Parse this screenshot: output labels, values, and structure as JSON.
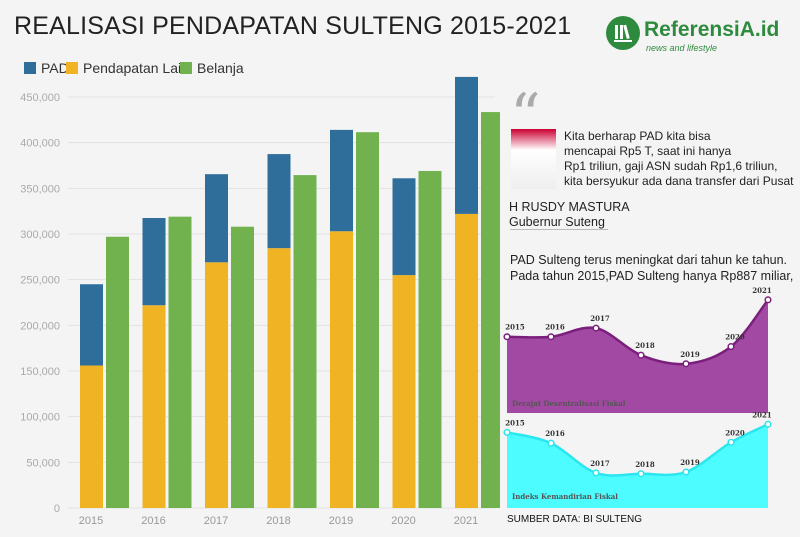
{
  "header": {
    "title": "REALISASI PENDAPATAN SULTENG 2015-2021"
  },
  "logo": {
    "name": "ReferensiA.id",
    "tagline": "news and lifestyle"
  },
  "quote": {
    "lines": [
      "Kita berharap PAD kita bisa",
      "mencapai Rp5 T, saat ini hanya",
      "Rp1 triliun, gaji ASN sudah Rp1,6 triliun,",
      "kita bersyukur ada dana transfer dari Pusat"
    ],
    "speaker": "H RUSDY MASTURA",
    "role": "Gubernur Suteng"
  },
  "description": [
    "PAD Sulteng terus meningkat dari tahun ke tahun.",
    "Pada tahun 2015,PAD Sulteng hanya Rp887 miliar,"
  ],
  "source": "SUMBER DATA: BI SULTENG",
  "chart_data": [
    {
      "type": "bar",
      "title": "REALISASI PENDAPATAN SULTENG 2015-2021",
      "categories": [
        "2015",
        "2016",
        "2017",
        "2018",
        "2019",
        "2020",
        "2021"
      ],
      "ylim": [
        0,
        450000
      ],
      "yticks": [
        0,
        50000,
        100000,
        150000,
        200000,
        250000,
        300000,
        350000,
        400000,
        450000
      ],
      "ytick_labels": [
        "0",
        "50,000",
        "100,000",
        "150,000",
        "200,000",
        "250,000",
        "300,000",
        "350,000",
        "400,000",
        "450,000"
      ],
      "legend": "top-left",
      "grid": true,
      "series": [
        {
          "name": "PAD",
          "color": "#2f6e9b",
          "stack": "pendapatan",
          "values": [
            89000,
            95500,
            96500,
            103000,
            111000,
            106000,
            150000
          ]
        },
        {
          "name": "Pendapatan Lain",
          "color": "#f0b323",
          "stack": "pendapatan",
          "values": [
            156000,
            222000,
            269000,
            284500,
            303000,
            255000,
            322000
          ]
        },
        {
          "name": "Belanja",
          "color": "#71b24f",
          "stack": "belanja",
          "values": [
            297000,
            319000,
            308000,
            364500,
            411500,
            369000,
            433500
          ]
        }
      ]
    },
    {
      "type": "area",
      "title": "Derajat Desentralisasi Fiskal",
      "color": "#a24aa3",
      "line": "#7a1f7c",
      "categories": [
        "2015",
        "2016",
        "2017",
        "2018",
        "2019",
        "2020",
        "2021"
      ],
      "values": [
        0.62,
        0.62,
        0.69,
        0.47,
        0.4,
        0.54,
        0.92
      ],
      "ylim": [
        0,
        1
      ]
    },
    {
      "type": "area",
      "title": "Indeks Kemandirian Fiskal",
      "color": "#4dfcff",
      "line": "#2ae6ef",
      "categories": [
        "2015",
        "2016",
        "2017",
        "2018",
        "2019",
        "2020",
        "2021"
      ],
      "values": [
        0.84,
        0.72,
        0.39,
        0.38,
        0.4,
        0.73,
        0.93
      ],
      "ylim": [
        0,
        1
      ]
    }
  ]
}
